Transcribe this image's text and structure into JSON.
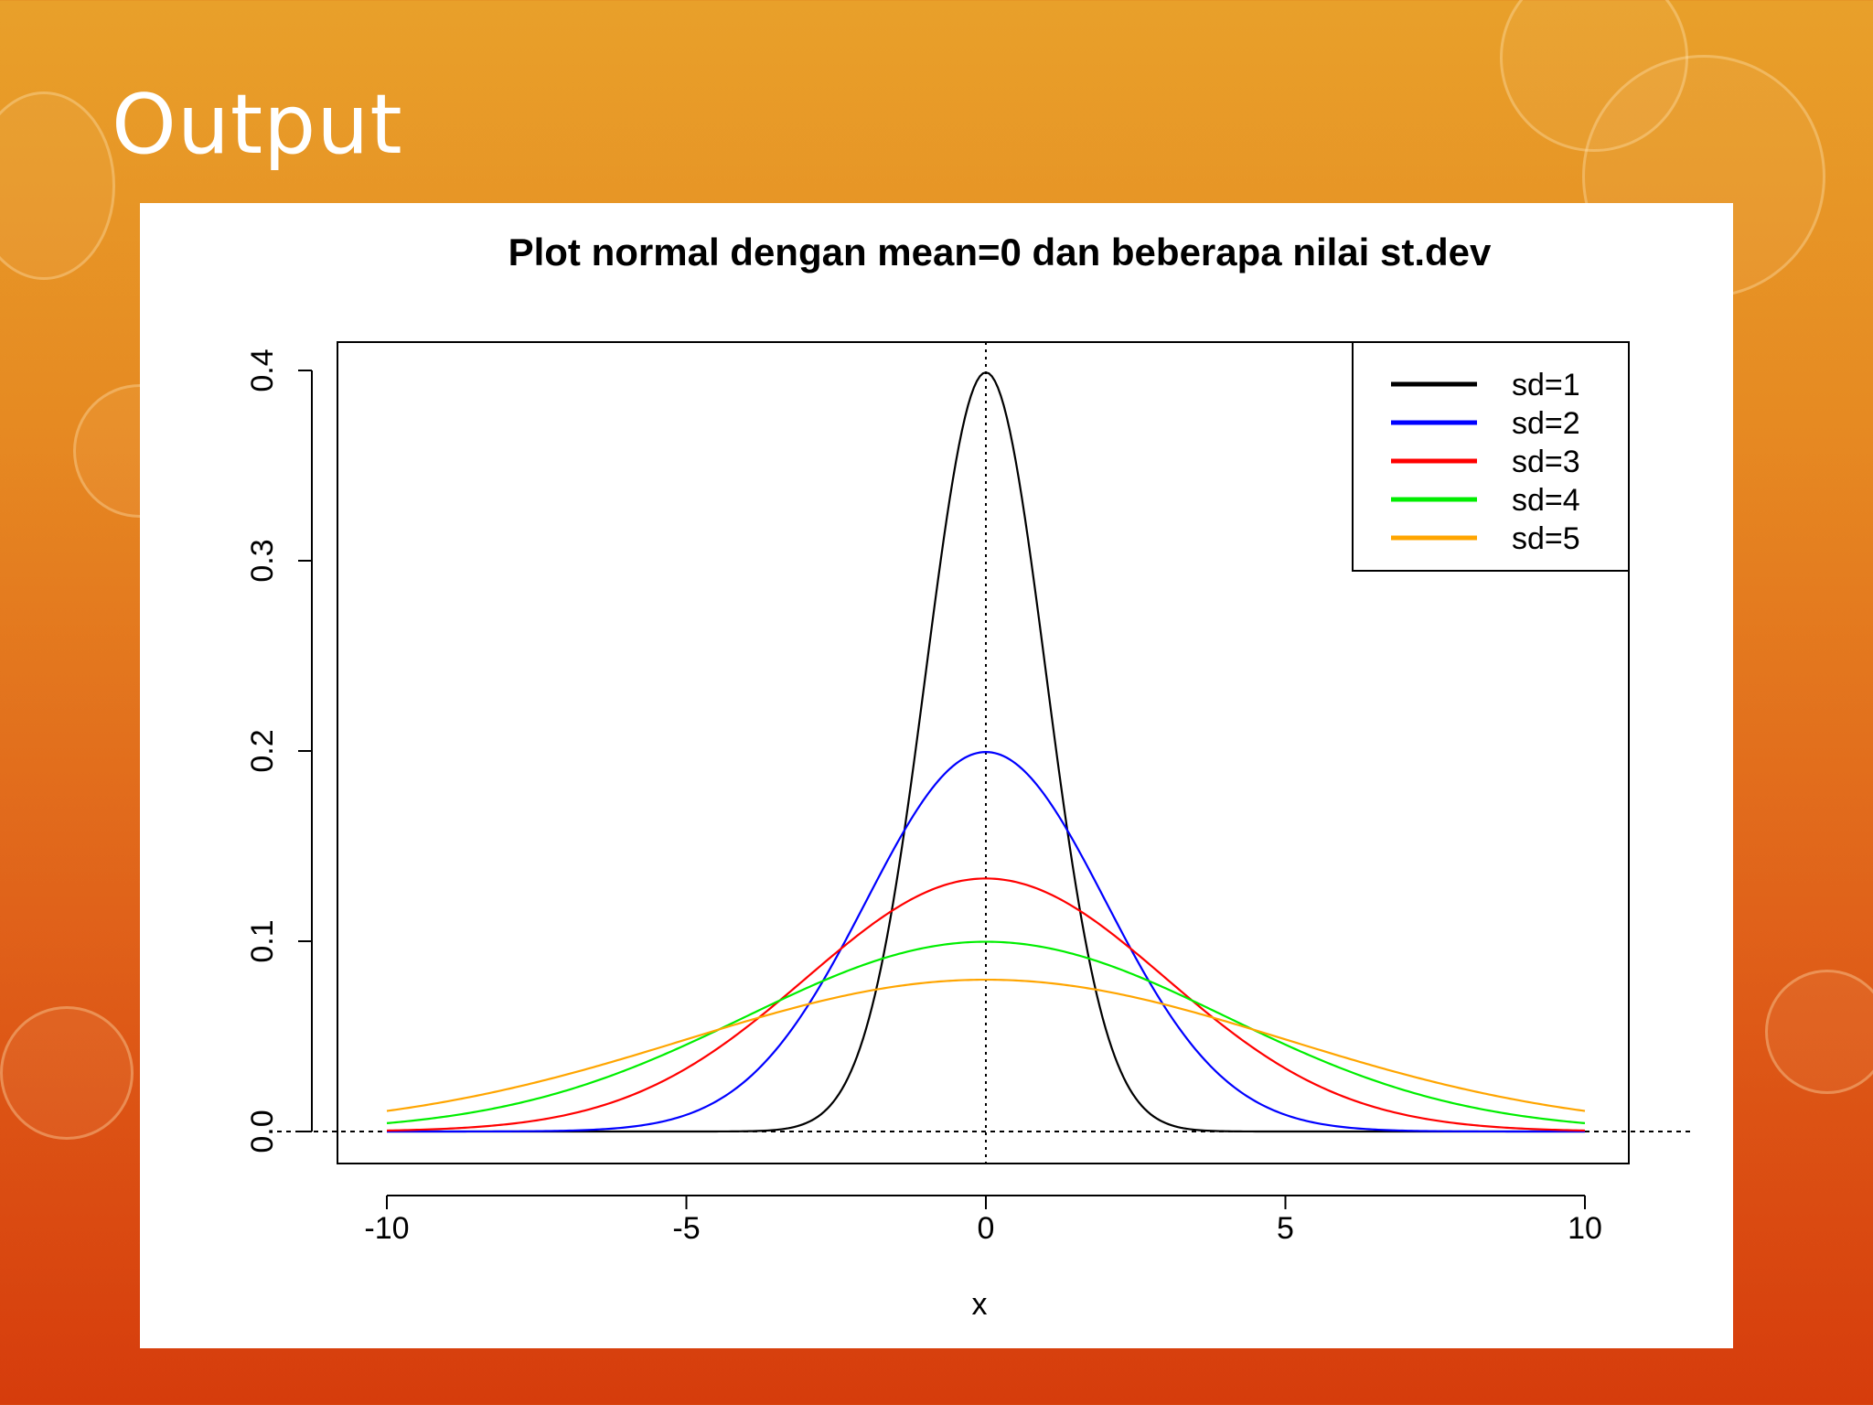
{
  "slide": {
    "title": "Output"
  },
  "chart_data": {
    "type": "line",
    "title": "Plot normal dengan mean=0 dan beberapa nilai st.dev",
    "xlabel": "x",
    "ylabel": "",
    "xlim": [
      -10,
      10
    ],
    "ylim": [
      0,
      0.4
    ],
    "x_ticks": [
      -10,
      -5,
      0,
      5,
      10
    ],
    "x_tick_labels": [
      "-10",
      "-5",
      "0",
      "5",
      "10"
    ],
    "y_ticks": [
      0,
      0.1,
      0.2,
      0.3,
      0.4
    ],
    "y_tick_labels": [
      "0.0",
      "0.1",
      "0.2",
      "0.3",
      "0.4"
    ],
    "mean": 0,
    "reference_lines": [
      {
        "orientation": "vertical",
        "x": 0,
        "style": "dotted"
      },
      {
        "orientation": "horizontal",
        "y": 0,
        "style": "dashed"
      }
    ],
    "legend_position": "top-right",
    "series": [
      {
        "name": "sd=1",
        "sd": 1,
        "color": "#000000"
      },
      {
        "name": "sd=2",
        "sd": 2,
        "color": "#0000ff"
      },
      {
        "name": "sd=3",
        "sd": 3,
        "color": "#ff0000"
      },
      {
        "name": "sd=4",
        "sd": 4,
        "color": "#00ee00"
      },
      {
        "name": "sd=5",
        "sd": 5,
        "color": "#ffa500"
      }
    ],
    "curve_peaks": [
      0.399,
      0.199,
      0.133,
      0.1,
      0.08
    ],
    "grid": false
  }
}
